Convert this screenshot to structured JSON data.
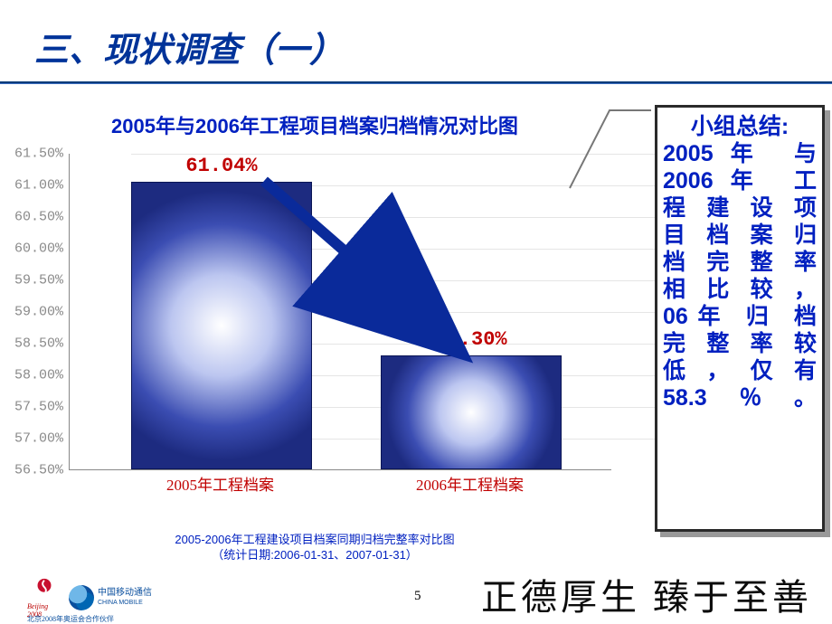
{
  "slide": {
    "title": "三、现状调查（一）",
    "page_number": "5"
  },
  "chart": {
    "type": "bar",
    "title": "2005年与2006年工程项目档案归档情况对比图",
    "title_color": "#0020c0",
    "title_fontsize": 22,
    "background_color": "#ffffff",
    "y_axis": {
      "min": 56.5,
      "max": 61.5,
      "tick_step": 0.5,
      "ticks": [
        "56.50%",
        "57.00%",
        "57.50%",
        "58.00%",
        "58.50%",
        "59.00%",
        "59.50%",
        "60.00%",
        "60.50%",
        "61.00%",
        "61.50%"
      ],
      "tick_color": "#8a8a8a",
      "tick_fontsize": 15
    },
    "grid_color": "#e5e5e5",
    "bars": [
      {
        "category": "2005年工程档案",
        "value": 61.04,
        "value_label": "61.04%",
        "color_edge": "#1d2b80",
        "color_center": "#ffffff"
      },
      {
        "category": "2006年工程档案",
        "value": 58.3,
        "value_label": "58.30%",
        "color_edge": "#1d2b80",
        "color_center": "#ffffff"
      }
    ],
    "bar_label_color": "#c00000",
    "bar_label_fontsize": 22,
    "xlabel_color": "#c00000",
    "xlabel_fontsize": 17,
    "arrow_color": "#0a2a9a",
    "caption_line1": "2005-2006年工程建设项目档案同期归档完整率对比图",
    "caption_line2": "（统计日期:2006-01-31、2007-01-31）"
  },
  "summary": {
    "header": "小组总结:",
    "body_lines": [
      "2005年 与",
      "2006年 工",
      "程 建 设 项",
      "目 档 案 归",
      "档 完 整 率",
      "相 比 较 ，",
      "06年 归 档",
      "完 整 率 较",
      "低 ， 仅 有",
      "58.3％。"
    ],
    "text_color": "#0020c0",
    "border_color": "#2a2a2a",
    "shadow_color": "#999999"
  },
  "footer": {
    "logo1_name": "beijing-2008-olympic-logo",
    "logo2_name": "china-mobile-logo",
    "logo2_text_cn": "中国移动通信",
    "logo2_text_en": "CHINA MOBILE",
    "logo_subtext": "北京2008年奥运会合作伙伴",
    "motto": "正德厚生   臻于至善"
  }
}
